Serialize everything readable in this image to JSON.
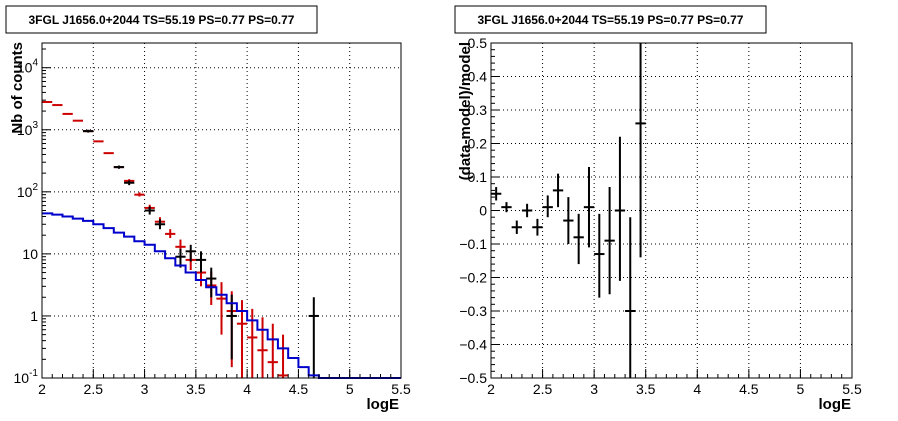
{
  "chart_data": [
    {
      "type": "scatter",
      "title": "3FGL J1656.0+2044 TS=55.19 PS=0.77 PS=0.77",
      "xlabel": "logE",
      "ylabel": "Nb of counts",
      "xlim": [
        2,
        5.5
      ],
      "ylim": [
        0.1,
        25000
      ],
      "yscale": "log",
      "grid": true,
      "x_ticks": [
        "2",
        "2.5",
        "3",
        "3.5",
        "4",
        "4.5",
        "5",
        "5.5"
      ],
      "y_ticks": [
        {
          "value": 0.1,
          "label": "10^-1"
        },
        {
          "value": 1,
          "label": "1"
        },
        {
          "value": 10,
          "label": "10"
        },
        {
          "value": 100,
          "label": "10^2"
        },
        {
          "value": 1000,
          "label": "10^3"
        },
        {
          "value": 10000,
          "label": "10^4"
        }
      ],
      "series": [
        {
          "kind": "points",
          "color": "#cc0000",
          "points": [
            {
              "x": 2.05,
              "y": 2800,
              "lo": 2800,
              "hi": 2800
            },
            {
              "x": 2.15,
              "y": 2500,
              "lo": 2500,
              "hi": 2500
            },
            {
              "x": 2.25,
              "y": 1800,
              "lo": 1800,
              "hi": 1800
            },
            {
              "x": 2.35,
              "y": 1400,
              "lo": 1400,
              "hi": 1400
            },
            {
              "x": 2.45,
              "y": 950,
              "lo": 950,
              "hi": 950
            },
            {
              "x": 2.55,
              "y": 650,
              "lo": 650,
              "hi": 650
            },
            {
              "x": 2.65,
              "y": 420,
              "lo": 420,
              "hi": 420
            },
            {
              "x": 2.75,
              "y": 250,
              "lo": 240,
              "hi": 260
            },
            {
              "x": 2.85,
              "y": 150,
              "lo": 140,
              "hi": 160
            },
            {
              "x": 2.95,
              "y": 90,
              "lo": 84,
              "hi": 98
            },
            {
              "x": 3.05,
              "y": 55,
              "lo": 49,
              "hi": 62
            },
            {
              "x": 3.15,
              "y": 33,
              "lo": 28,
              "hi": 39
            },
            {
              "x": 3.25,
              "y": 21,
              "lo": 18,
              "hi": 25
            },
            {
              "x": 3.35,
              "y": 13,
              "lo": 10,
              "hi": 17
            },
            {
              "x": 3.45,
              "y": 8,
              "lo": 5.5,
              "hi": 11
            },
            {
              "x": 3.55,
              "y": 5,
              "lo": 3,
              "hi": 7.5
            },
            {
              "x": 3.65,
              "y": 3.1,
              "lo": 1.5,
              "hi": 5.2
            },
            {
              "x": 3.75,
              "y": 1.9,
              "lo": 0.5,
              "hi": 3.5
            },
            {
              "x": 3.85,
              "y": 1.2,
              "lo": 0.15,
              "hi": 2.5
            },
            {
              "x": 3.95,
              "y": 0.75,
              "lo": 0.1,
              "hi": 1.8
            },
            {
              "x": 4.05,
              "y": 0.45,
              "lo": 0.1,
              "hi": 1.3
            },
            {
              "x": 4.15,
              "y": 0.28,
              "lo": 0.1,
              "hi": 0.95
            },
            {
              "x": 4.25,
              "y": 0.18,
              "lo": 0.1,
              "hi": 0.75
            },
            {
              "x": 4.35,
              "y": 0.11,
              "lo": 0.1,
              "hi": 0.5
            }
          ]
        },
        {
          "kind": "points",
          "color": "#000000",
          "points": [
            {
              "x": 2.45,
              "y": 950,
              "lo": 900,
              "hi": 1000
            },
            {
              "x": 2.75,
              "y": 250,
              "lo": 235,
              "hi": 265
            },
            {
              "x": 2.85,
              "y": 140,
              "lo": 128,
              "hi": 152
            },
            {
              "x": 3.05,
              "y": 50,
              "lo": 43,
              "hi": 58
            },
            {
              "x": 3.15,
              "y": 30,
              "lo": 25,
              "hi": 36
            },
            {
              "x": 3.35,
              "y": 9,
              "lo": 6,
              "hi": 12
            },
            {
              "x": 3.45,
              "y": 11,
              "lo": 7.5,
              "hi": 14
            },
            {
              "x": 3.55,
              "y": 8,
              "lo": 5,
              "hi": 11
            },
            {
              "x": 3.65,
              "y": 4,
              "lo": 2,
              "hi": 6
            },
            {
              "x": 3.85,
              "y": 1,
              "lo": 0.2,
              "hi": 2.2
            },
            {
              "x": 4.65,
              "y": 1,
              "lo": 0.1,
              "hi": 2
            }
          ]
        },
        {
          "kind": "step",
          "color": "#0000cc",
          "edges": [
            2.0,
            2.1,
            2.2,
            2.3,
            2.4,
            2.5,
            2.6,
            2.7,
            2.8,
            2.9,
            3.0,
            3.1,
            3.2,
            3.3,
            3.4,
            3.5,
            3.6,
            3.7,
            3.8,
            3.9,
            4.0,
            4.1,
            4.2,
            4.3,
            4.4,
            4.5,
            4.6,
            4.7,
            4.8,
            4.9,
            5.0,
            5.1,
            5.2,
            5.3,
            5.4,
            5.5
          ],
          "values": [
            45,
            43,
            40,
            37,
            34,
            30,
            26,
            22,
            19,
            16,
            14,
            11,
            8.5,
            6.5,
            5,
            3.8,
            2.9,
            2.2,
            1.6,
            1.2,
            0.85,
            0.6,
            0.42,
            0.3,
            0.21,
            0.15,
            0.11,
            0.1,
            0.1,
            0.1,
            0.1,
            0.1,
            0.1,
            0.1,
            0.1
          ]
        }
      ]
    },
    {
      "type": "scatter",
      "title": "3FGL J1656.0+2044 TS=55.19 PS=0.77 PS=0.77",
      "xlabel": "logE",
      "ylabel": "(data-model)/model",
      "xlim": [
        2,
        5.5
      ],
      "ylim": [
        -0.5,
        0.5
      ],
      "yscale": "linear",
      "grid": true,
      "x_ticks": [
        "2",
        "2.5",
        "3",
        "3.5",
        "4",
        "4.5",
        "5",
        "5.5"
      ],
      "y_ticks": [
        "-0.5",
        "-0.4",
        "-0.3",
        "-0.2",
        "-0.1",
        "0",
        "0.1",
        "0.2",
        "0.3",
        "0.4",
        "0.5"
      ],
      "series": [
        {
          "kind": "points",
          "color": "#000000",
          "points": [
            {
              "x": 2.05,
              "y": 0.05,
              "lo": 0.03,
              "hi": 0.07
            },
            {
              "x": 2.15,
              "y": 0.01,
              "lo": -0.005,
              "hi": 0.025
            },
            {
              "x": 2.25,
              "y": -0.05,
              "lo": -0.07,
              "hi": -0.03
            },
            {
              "x": 2.35,
              "y": 0.0,
              "lo": -0.02,
              "hi": 0.02
            },
            {
              "x": 2.45,
              "y": -0.05,
              "lo": -0.075,
              "hi": -0.025
            },
            {
              "x": 2.55,
              "y": 0.01,
              "lo": -0.02,
              "hi": 0.045
            },
            {
              "x": 2.65,
              "y": 0.06,
              "lo": 0.01,
              "hi": 0.11
            },
            {
              "x": 2.75,
              "y": -0.03,
              "lo": -0.1,
              "hi": 0.04
            },
            {
              "x": 2.85,
              "y": -0.08,
              "lo": -0.16,
              "hi": -0.01
            },
            {
              "x": 2.95,
              "y": 0.01,
              "lo": -0.11,
              "hi": 0.13
            },
            {
              "x": 3.05,
              "y": -0.13,
              "lo": -0.26,
              "hi": -0.01
            },
            {
              "x": 3.15,
              "y": -0.09,
              "lo": -0.25,
              "hi": 0.07
            },
            {
              "x": 3.25,
              "y": 0.0,
              "lo": -0.21,
              "hi": 0.22
            },
            {
              "x": 3.35,
              "y": -0.3,
              "lo": -0.5,
              "hi": -0.02
            },
            {
              "x": 3.45,
              "y": 0.26,
              "lo": -0.14,
              "hi": 0.5
            }
          ]
        }
      ]
    }
  ]
}
